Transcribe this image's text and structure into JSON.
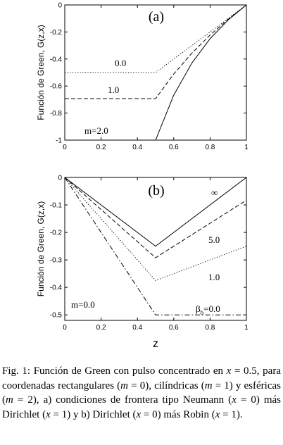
{
  "chart_data": [
    {
      "panel": "(a)",
      "type": "line",
      "xlabel": "",
      "ylabel": "Función de Green, G(z,x)",
      "xlim": [
        0,
        1
      ],
      "ylim": [
        -1,
        0
      ],
      "x_ticks": [
        "0",
        "0.2",
        "0.4",
        "0.6",
        "0.8",
        "1"
      ],
      "y_ticks": [
        "-1",
        "-0.8",
        "-0.6",
        "-0.4",
        "-0.2",
        "0"
      ],
      "grid": false,
      "series": [
        {
          "name": "0.0",
          "style": "dotted",
          "x": [
            0,
            0.5,
            0.6,
            0.7,
            0.8,
            0.9,
            1.0
          ],
          "y": [
            -0.5,
            -0.5,
            -0.4,
            -0.3,
            -0.2,
            -0.1,
            0.0
          ]
        },
        {
          "name": "1.0",
          "style": "dashed",
          "x": [
            0,
            0.5,
            0.6,
            0.7,
            0.8,
            0.9,
            1.0
          ],
          "y": [
            -0.693,
            -0.693,
            -0.511,
            -0.357,
            -0.223,
            -0.105,
            0.0
          ]
        },
        {
          "name": "m=2.0",
          "style": "solid",
          "x": [
            0,
            0.5,
            0.6,
            0.7,
            0.8,
            0.9,
            1.0
          ],
          "y": [
            -1.0,
            -1.0,
            -0.667,
            -0.429,
            -0.25,
            -0.111,
            0.0
          ]
        }
      ]
    },
    {
      "panel": "(b)",
      "type": "line",
      "xlabel": "z",
      "ylabel": "Función de Green, G(z,x)",
      "xlim": [
        0,
        1
      ],
      "ylim": [
        -0.52,
        0
      ],
      "x_ticks": [
        "0",
        "0.2",
        "0.4",
        "0.6",
        "0.8",
        "1"
      ],
      "y_ticks": [
        "-0.5",
        "-0.4",
        "-0.3",
        "-0.2",
        "-0.1",
        "0"
      ],
      "grid": false,
      "annotations": [
        "m=0.0"
      ],
      "series": [
        {
          "name": "∞",
          "style": "solid",
          "x": [
            0,
            0.5,
            1.0
          ],
          "y": [
            0.0,
            -0.25,
            0.0
          ]
        },
        {
          "name": "5.0",
          "style": "dashed",
          "x": [
            0,
            0.5,
            1.0
          ],
          "y": [
            0.0,
            -0.292,
            -0.083
          ]
        },
        {
          "name": "1.0",
          "style": "dotted",
          "x": [
            0,
            0.5,
            1.0
          ],
          "y": [
            0.0,
            -0.375,
            -0.25
          ]
        },
        {
          "name": "β_b=0.0",
          "style": "dashdot",
          "x": [
            0,
            0.5,
            1.0
          ],
          "y": [
            0.0,
            -0.5,
            -0.5
          ]
        }
      ]
    }
  ],
  "caption": {
    "fig_label": "Fig. 1:",
    "text_1": " Función de Green con pulso concentrado en ",
    "x_var": "x",
    "text_2": " = 0.5, para coordenadas rectangulares (",
    "m_var": "m",
    "text_3": " = 0), cilíndricas (",
    "text_4": " = 1) y esféricas (",
    "text_5": " = 2), a) condiciones de frontera tipo Neumann (",
    "text_6": " = 0) más Dirichlet (",
    "text_7": " = 1) y b) Dirichlet (",
    "text_8": " = 0) más Robin (",
    "text_9": " = 1)."
  }
}
